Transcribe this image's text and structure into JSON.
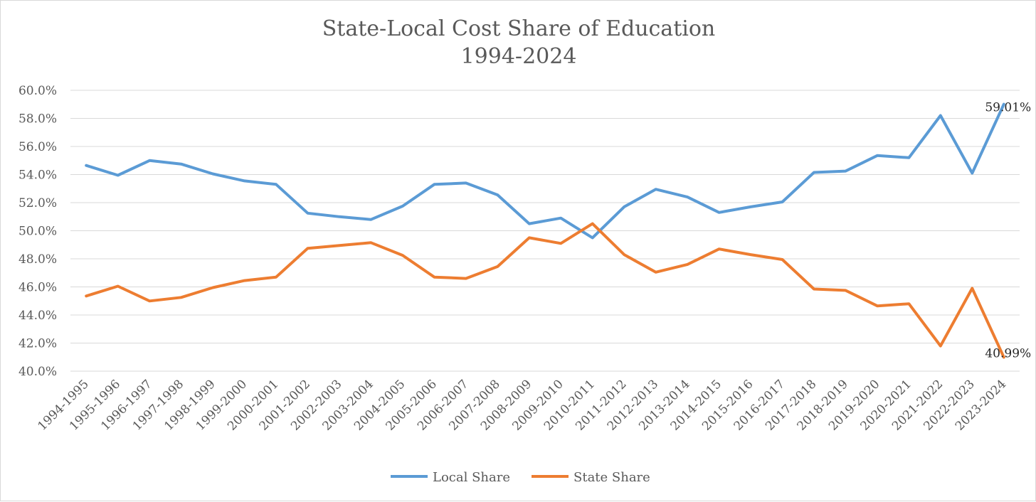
{
  "chart_data": {
    "type": "line",
    "title": "State-Local Cost Share of Education",
    "subtitle": "1994-2024",
    "xlabel": "",
    "ylabel": "",
    "ylim": [
      40,
      60
    ],
    "ytick_step": 2,
    "ytick_format": "percent_1dp",
    "grid": true,
    "legend_position": "bottom",
    "categories": [
      "1994-1995",
      "1995-1996",
      "1996-1997",
      "1997-1998",
      "1998-1999",
      "1999-2000",
      "2000-2001",
      "2001-2002",
      "2002-2003",
      "2003-2004",
      "2004-2005",
      "2005-2006",
      "2006-2007",
      "2007-2008",
      "2008-2009",
      "2009-2010",
      "2010-2011",
      "2011-2012",
      "2012-2013",
      "2013-2014",
      "2014-2015",
      "2015-2016",
      "2016-2017",
      "2017-2018",
      "2018-2019",
      "2019-2020",
      "2020-2021",
      "2021-2022",
      "2022-2023",
      "2023-2024"
    ],
    "series": [
      {
        "name": "Local Share",
        "color": "#5b9bd5",
        "values": [
          54.65,
          53.95,
          55.0,
          54.75,
          54.05,
          53.55,
          53.3,
          51.25,
          51.0,
          50.8,
          51.75,
          53.3,
          53.4,
          52.55,
          50.5,
          50.9,
          49.5,
          51.7,
          52.95,
          52.4,
          51.3,
          51.7,
          52.05,
          54.15,
          54.25,
          55.35,
          55.2,
          58.2,
          54.1,
          59.01
        ],
        "end_label": "59.01%"
      },
      {
        "name": "State Share",
        "color": "#ed7d31",
        "values": [
          45.35,
          46.05,
          45.0,
          45.25,
          45.95,
          46.45,
          46.7,
          48.75,
          48.95,
          49.15,
          48.25,
          46.7,
          46.6,
          47.45,
          49.5,
          49.1,
          50.5,
          48.3,
          47.05,
          47.6,
          48.7,
          48.3,
          47.95,
          45.85,
          45.75,
          44.65,
          44.8,
          41.8,
          45.9,
          40.99
        ],
        "end_label": "40.99%"
      }
    ]
  }
}
